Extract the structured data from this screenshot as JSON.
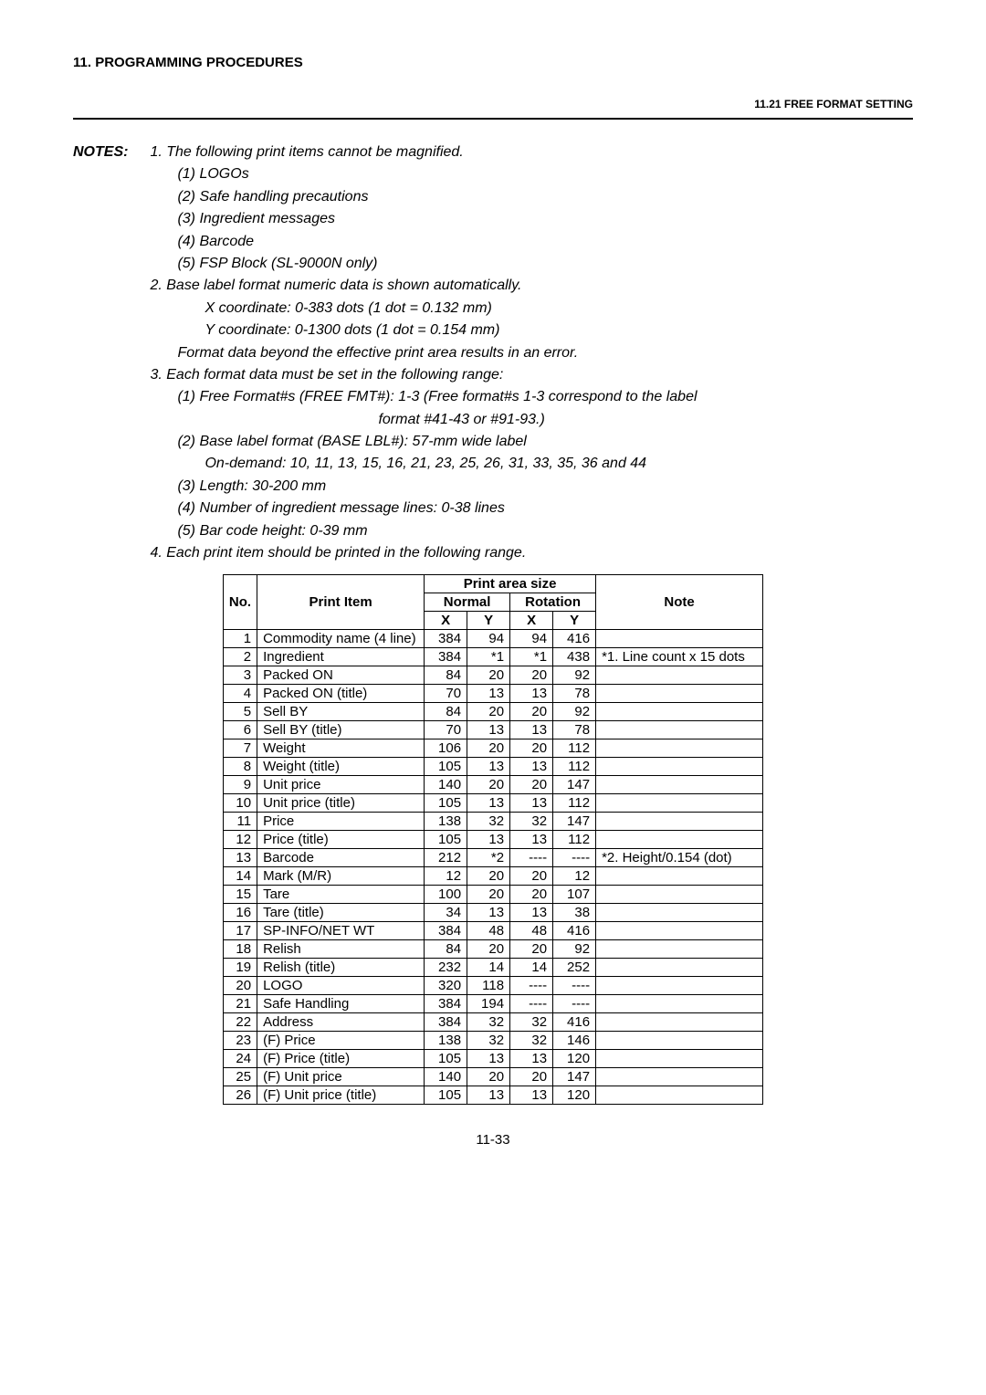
{
  "chapter": "11.  PROGRAMMING PROCEDURES",
  "section": "11.21 FREE FORMAT SETTING",
  "notesLabel": "NOTES:",
  "notes": {
    "n1": "1.  The following print items cannot be magnified.",
    "n1a": "(1) LOGOs",
    "n1b": "(2) Safe handling precautions",
    "n1c": "(3) Ingredient messages",
    "n1d": "(4) Barcode",
    "n1e": "(5) FSP Block (SL-9000N only)",
    "n2": "2.  Base label format numeric data is shown automatically.",
    "n2a": "X coordinate:       0-383 dots    (1 dot = 0.132 mm)",
    "n2b": "Y coordinate:       0-1300 dots   (1 dot = 0.154 mm)",
    "n2c": "Format data beyond the effective print area results in an error.",
    "n3": "3.  Each format data must be set in the following range:",
    "n3a": "(1) Free Format#s (FREE FMT#):   1-3 (Free format#s 1-3 correspond to the label",
    "n3a2": "format #41-43 or #91-93.)",
    "n3b": "(2) Base label format (BASE LBL#):     57-mm wide label",
    "n3b2": "On-demand:        10, 11, 13, 15, 16, 21, 23, 25, 26, 31, 33, 35, 36 and 44",
    "n3c": "(3) Length:   30-200 mm",
    "n3d": "(4) Number of ingredient message lines:    0-38 lines",
    "n3e": "(5) Bar code height:   0-39 mm",
    "n4": "4.  Each print item should be printed in the following range."
  },
  "table": {
    "headers": {
      "no": "No.",
      "item": "Print Item",
      "area": "Print area size",
      "normal": "Normal",
      "rotation": "Rotation",
      "x": "X",
      "y": "Y",
      "note": "Note"
    },
    "rows": [
      {
        "no": "1",
        "item": "Commodity name (4 line)",
        "nx": "384",
        "ny": "94",
        "rx": "94",
        "ry": "416",
        "note": ""
      },
      {
        "no": "2",
        "item": "Ingredient",
        "nx": "384",
        "ny": "*1",
        "rx": "*1",
        "ry": "438",
        "note": "*1. Line count x 15 dots"
      },
      {
        "no": "3",
        "item": "Packed ON",
        "nx": "84",
        "ny": "20",
        "rx": "20",
        "ry": "92",
        "note": ""
      },
      {
        "no": "4",
        "item": "Packed ON (title)",
        "nx": "70",
        "ny": "13",
        "rx": "13",
        "ry": "78",
        "note": ""
      },
      {
        "no": "5",
        "item": "Sell BY",
        "nx": "84",
        "ny": "20",
        "rx": "20",
        "ry": "92",
        "note": ""
      },
      {
        "no": "6",
        "item": "Sell BY (title)",
        "nx": "70",
        "ny": "13",
        "rx": "13",
        "ry": "78",
        "note": ""
      },
      {
        "no": "7",
        "item": "Weight",
        "nx": "106",
        "ny": "20",
        "rx": "20",
        "ry": "112",
        "note": ""
      },
      {
        "no": "8",
        "item": "Weight (title)",
        "nx": "105",
        "ny": "13",
        "rx": "13",
        "ry": "112",
        "note": ""
      },
      {
        "no": "9",
        "item": "Unit price",
        "nx": "140",
        "ny": "20",
        "rx": "20",
        "ry": "147",
        "note": ""
      },
      {
        "no": "10",
        "item": "Unit price (title)",
        "nx": "105",
        "ny": "13",
        "rx": "13",
        "ry": "112",
        "note": ""
      },
      {
        "no": "11",
        "item": "Price",
        "nx": "138",
        "ny": "32",
        "rx": "32",
        "ry": "147",
        "note": ""
      },
      {
        "no": "12",
        "item": "Price (title)",
        "nx": "105",
        "ny": "13",
        "rx": "13",
        "ry": "112",
        "note": ""
      },
      {
        "no": "13",
        "item": "Barcode",
        "nx": "212",
        "ny": "*2",
        "rx": "----",
        "ry": "----",
        "note": "*2. Height/0.154 (dot)"
      },
      {
        "no": "14",
        "item": "Mark (M/R)",
        "nx": "12",
        "ny": "20",
        "rx": "20",
        "ry": "12",
        "note": ""
      },
      {
        "no": "15",
        "item": "Tare",
        "nx": "100",
        "ny": "20",
        "rx": "20",
        "ry": "107",
        "note": ""
      },
      {
        "no": "16",
        "item": "Tare (title)",
        "nx": "34",
        "ny": "13",
        "rx": "13",
        "ry": "38",
        "note": ""
      },
      {
        "no": "17",
        "item": "SP-INFO/NET WT",
        "nx": "384",
        "ny": "48",
        "rx": "48",
        "ry": "416",
        "note": ""
      },
      {
        "no": "18",
        "item": "Relish",
        "nx": "84",
        "ny": "20",
        "rx": "20",
        "ry": "92",
        "note": ""
      },
      {
        "no": "19",
        "item": "Relish (title)",
        "nx": "232",
        "ny": "14",
        "rx": "14",
        "ry": "252",
        "note": ""
      },
      {
        "no": "20",
        "item": "LOGO",
        "nx": "320",
        "ny": "118",
        "rx": "----",
        "ry": "----",
        "note": ""
      },
      {
        "no": "21",
        "item": "Safe Handling",
        "nx": "384",
        "ny": "194",
        "rx": "----",
        "ry": "----",
        "note": ""
      },
      {
        "no": "22",
        "item": "Address",
        "nx": "384",
        "ny": "32",
        "rx": "32",
        "ry": "416",
        "note": ""
      },
      {
        "no": "23",
        "item": "(F) Price",
        "nx": "138",
        "ny": "32",
        "rx": "32",
        "ry": "146",
        "note": ""
      },
      {
        "no": "24",
        "item": "(F) Price (title)",
        "nx": "105",
        "ny": "13",
        "rx": "13",
        "ry": "120",
        "note": ""
      },
      {
        "no": "25",
        "item": "(F) Unit price",
        "nx": "140",
        "ny": "20",
        "rx": "20",
        "ry": "147",
        "note": ""
      },
      {
        "no": "26",
        "item": "(F) Unit price (title)",
        "nx": "105",
        "ny": "13",
        "rx": "13",
        "ry": "120",
        "note": ""
      }
    ]
  },
  "pageNum": "11-33"
}
